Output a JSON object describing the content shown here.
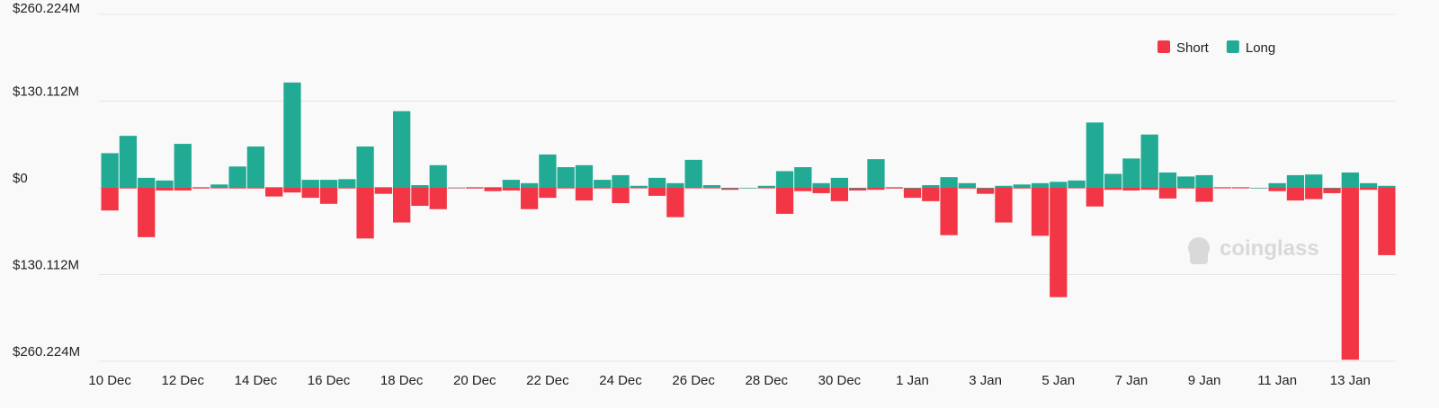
{
  "chart_data": {
    "type": "bar",
    "categories": [
      "10 Dec",
      null,
      null,
      null,
      "12 Dec",
      null,
      null,
      null,
      "14 Dec",
      null,
      null,
      null,
      "16 Dec",
      null,
      null,
      null,
      "18 Dec",
      null,
      null,
      null,
      "20 Dec",
      null,
      null,
      null,
      "22 Dec",
      null,
      null,
      null,
      "24 Dec",
      null,
      null,
      null,
      "26 Dec",
      null,
      null,
      null,
      "28 Dec",
      null,
      null,
      null,
      "30 Dec",
      null,
      null,
      null,
      "1 Jan",
      null,
      null,
      null,
      "3 Jan",
      null,
      null,
      null,
      "5 Jan",
      null,
      null,
      null,
      "7 Jan",
      null,
      null,
      null,
      "9 Jan",
      null,
      null,
      null,
      "11 Jan",
      null,
      null,
      null,
      "13 Jan",
      null,
      null
    ],
    "series": [
      {
        "name": "Short",
        "color": "#f23645",
        "values": [
          -34,
          -1,
          -74,
          -4,
          -4,
          -1,
          0,
          -1,
          -1,
          -13,
          -7,
          -15,
          -24,
          -1,
          -76,
          -9,
          -52,
          -27,
          -32,
          -0.5,
          -1,
          -5,
          -4,
          -32,
          -15,
          -1,
          -19,
          -1,
          -23,
          0,
          -12,
          -44,
          0,
          0,
          -3,
          0,
          0,
          -39,
          -5,
          -8,
          -20,
          -4,
          -3,
          -1,
          -15,
          -20,
          -71,
          -1,
          -9,
          -52,
          -1,
          -72,
          -164,
          0,
          -28,
          -3,
          -4,
          -3,
          -16,
          -1,
          -21,
          0,
          0,
          0,
          -5,
          -19,
          -17,
          -8,
          -258,
          -3,
          -101
        ]
      },
      {
        "name": "Long",
        "color": "#22ab94",
        "values": [
          52,
          78,
          15,
          11,
          66,
          1,
          5,
          32,
          62,
          1,
          158,
          12,
          12,
          13,
          62,
          1,
          115,
          4,
          34,
          0.5,
          1,
          1,
          12,
          7,
          50,
          31,
          34,
          12,
          19,
          3,
          15,
          7,
          42,
          4,
          0,
          0,
          3,
          25,
          31,
          7,
          15,
          0,
          43,
          1,
          0,
          4,
          16,
          7,
          0,
          3,
          5,
          7,
          9,
          11,
          98,
          21,
          44,
          80,
          23,
          17,
          19,
          1,
          1,
          0,
          7,
          19,
          20,
          0,
          23,
          7,
          3
        ]
      }
    ],
    "ylim": [
      -260.224,
      260.224
    ],
    "yticks": [
      {
        "value": -260.224,
        "label": "$260.224M"
      },
      {
        "value": -130.112,
        "label": "$130.112M"
      },
      {
        "value": 0,
        "label": "$0"
      },
      {
        "value": 130.112,
        "label": "$130.112M"
      },
      {
        "value": 260.224,
        "label": "$260.224M"
      }
    ],
    "grid": true,
    "legend": "top-right",
    "watermark": "coinglass"
  }
}
